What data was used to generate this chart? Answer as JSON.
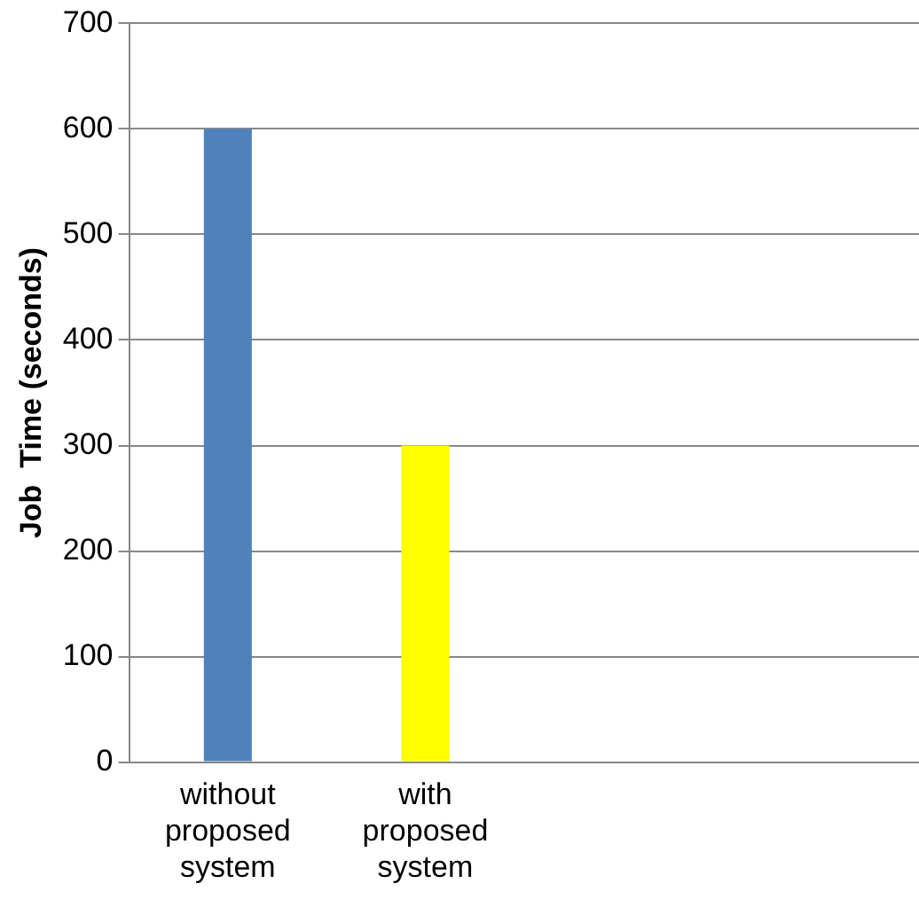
{
  "chart_data": {
    "type": "bar",
    "ylabel": "Job  Time (seconds)",
    "categories": [
      "without proposed system",
      "with proposed system",
      null,
      null
    ],
    "values": [
      600,
      300,
      null,
      null
    ],
    "colors": [
      "#4f81bd",
      "#ffff00",
      "#4f81bd",
      "#ffff00"
    ],
    "ylim": [
      0,
      700
    ],
    "yticks": [
      0,
      100,
      200,
      300,
      400,
      500,
      600,
      700
    ],
    "grid": "y",
    "legend": false
  }
}
